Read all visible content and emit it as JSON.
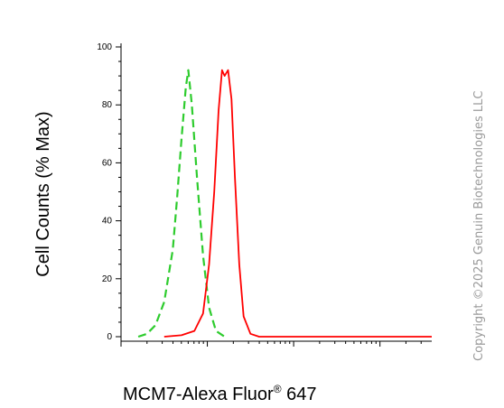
{
  "chart_data": {
    "type": "line",
    "xlabel_main": "MCM7-Alexa Fluor",
    "xlabel_sup": "®",
    "xlabel_tail": " 647",
    "ylabel": "Cell Counts (% Max)",
    "xscale": "log",
    "ylim": [
      0,
      100
    ],
    "yticks": [
      "0",
      "20",
      "40",
      "60",
      "80",
      "100"
    ],
    "grid": false,
    "series": [
      {
        "color": "#2ecc2e",
        "style": "dashed",
        "points": [
          [
            1.2,
            0
          ],
          [
            1.3,
            1
          ],
          [
            1.4,
            4
          ],
          [
            1.5,
            12
          ],
          [
            1.6,
            30
          ],
          [
            1.65,
            48
          ],
          [
            1.7,
            68
          ],
          [
            1.75,
            86
          ],
          [
            1.78,
            92
          ],
          [
            1.82,
            80
          ],
          [
            1.88,
            55
          ],
          [
            1.95,
            28
          ],
          [
            2.02,
            10
          ],
          [
            2.1,
            2
          ],
          [
            2.2,
            0
          ]
        ]
      },
      {
        "color": "#ff0000",
        "style": "solid",
        "points": [
          [
            1.5,
            0
          ],
          [
            1.7,
            0.5
          ],
          [
            1.85,
            2
          ],
          [
            1.95,
            8
          ],
          [
            2.02,
            25
          ],
          [
            2.08,
            50
          ],
          [
            2.13,
            78
          ],
          [
            2.17,
            92
          ],
          [
            2.2,
            90
          ],
          [
            2.24,
            92
          ],
          [
            2.28,
            82
          ],
          [
            2.32,
            55
          ],
          [
            2.37,
            25
          ],
          [
            2.42,
            7
          ],
          [
            2.5,
            1
          ],
          [
            2.6,
            0
          ],
          [
            4.6,
            0
          ]
        ]
      }
    ],
    "watermark": "Copyright ©2025 Genuin Biotechnologies LLC"
  }
}
